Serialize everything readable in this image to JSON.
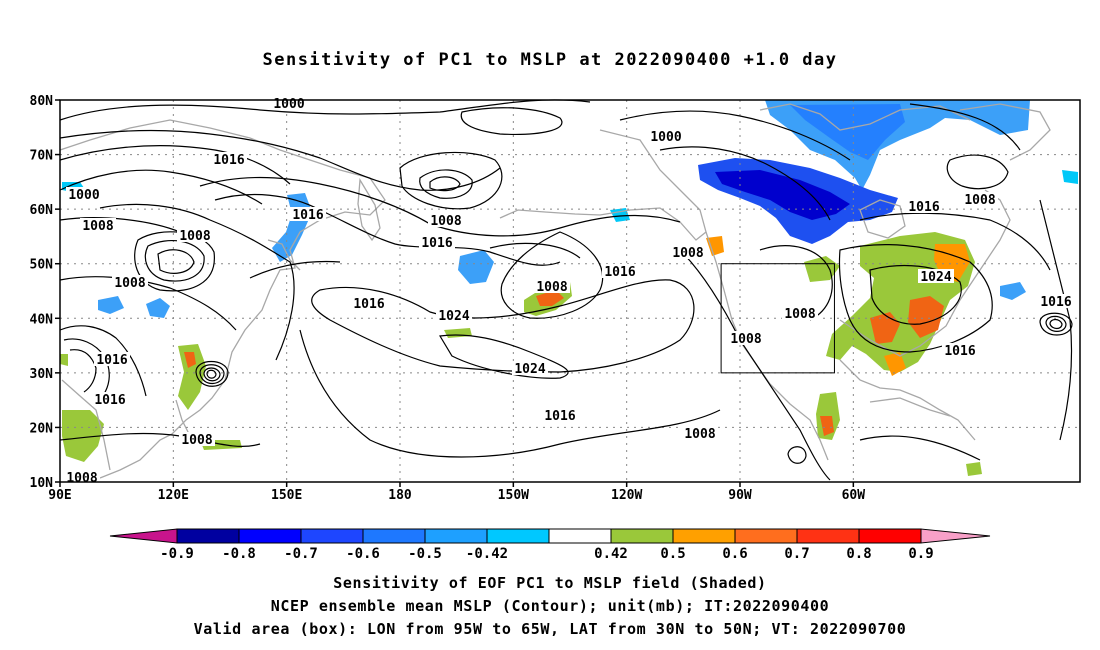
{
  "title": "Sensitivity of PC1 to MSLP at 2022090400 +1.0 day",
  "map": {
    "lat_labels": [
      "80N",
      "70N",
      "60N",
      "50N",
      "40N",
      "30N",
      "20N",
      "10N"
    ],
    "lon_labels": [
      "90E",
      "120E",
      "150E",
      "180",
      "150W",
      "120W",
      "90W",
      "60W"
    ],
    "contour_labels": [
      {
        "text": "1000"
      },
      {
        "text": "1016"
      },
      {
        "text": "1000"
      },
      {
        "text": "1008"
      },
      {
        "text": "1008"
      },
      {
        "text": "1008"
      },
      {
        "text": "1016"
      },
      {
        "text": "1016"
      },
      {
        "text": "1016"
      },
      {
        "text": "1016"
      },
      {
        "text": "1008"
      },
      {
        "text": "1008"
      },
      {
        "text": "1016"
      },
      {
        "text": "1024"
      },
      {
        "text": "1008"
      },
      {
        "text": "1024"
      },
      {
        "text": "1016"
      },
      {
        "text": "1016"
      },
      {
        "text": "1008"
      },
      {
        "text": "1008"
      },
      {
        "text": "1000"
      },
      {
        "text": "1008"
      },
      {
        "text": "1016"
      },
      {
        "text": "1008"
      },
      {
        "text": "1024"
      },
      {
        "text": "1008"
      },
      {
        "text": "1008"
      },
      {
        "text": "1016"
      },
      {
        "text": "1016"
      }
    ],
    "valid_box": {
      "lon_from": "95W",
      "lon_to": "65W",
      "lat_from": "30N",
      "lat_to": "50N"
    },
    "colors": {
      "neg_strong": "#0000cd",
      "neg_mid": "#1e50f0",
      "neg_light": "#3ca0f8",
      "neg_lightest": "#00c8f8",
      "pos_green": "#9ac83a",
      "pos_orange": "#ff9600",
      "pos_dark_orange": "#f06414",
      "pos_red": "#ff0000",
      "coast": "#a8a8a8",
      "grid": "#888888",
      "contour": "#000000"
    }
  },
  "colorbar": {
    "labels": [
      "-0.9",
      "-0.8",
      "-0.7",
      "-0.6",
      "-0.5",
      "-0.42",
      "0.42",
      "0.5",
      "0.6",
      "0.7",
      "0.8",
      "0.9"
    ],
    "colors": [
      "#0000a0",
      "#0000ff",
      "#1e46ff",
      "#1e78ff",
      "#1ea0ff",
      "#00c8ff",
      "#ffffff",
      "#9ac83a",
      "#ffa000",
      "#ff6e1e",
      "#ff3214",
      "#ff0000"
    ],
    "left_tip": "#c8148c",
    "right_tip": "#f8a0c8"
  },
  "captions": {
    "line1": "Sensitivity of EOF PC1 to MSLP field (Shaded)",
    "line2": "NCEP ensemble mean MSLP (Contour); unit(mb); IT:2022090400",
    "line3": "Valid area (box): LON from 95W to 65W, LAT from 30N to 50N; VT: 2022090700"
  }
}
